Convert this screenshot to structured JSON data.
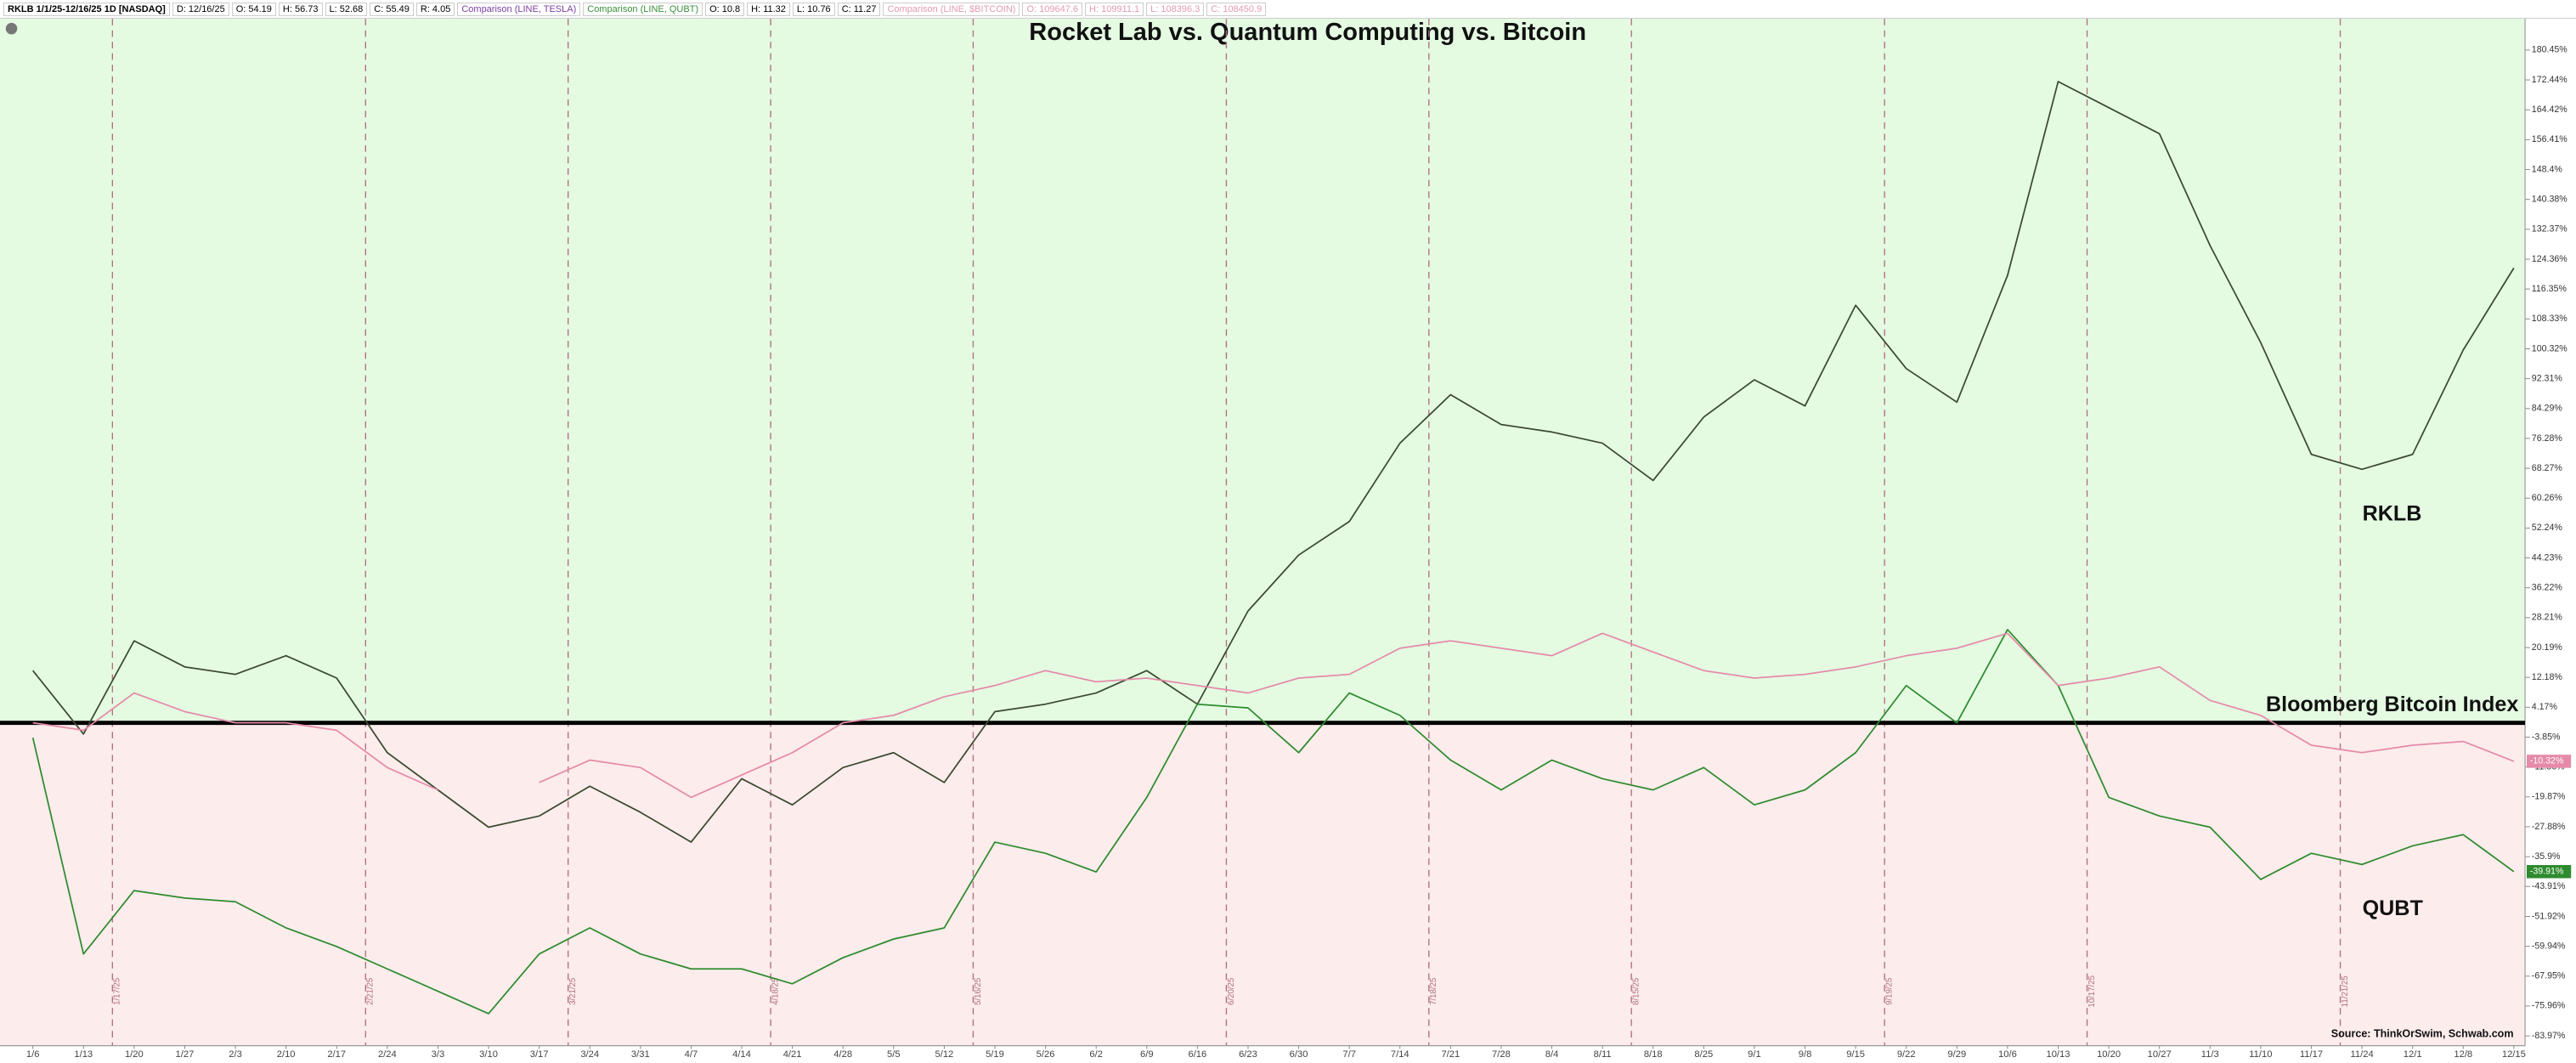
{
  "chart_data": {
    "type": "line",
    "title": "Rocket Lab vs. Quantum Computing vs. Bitcoin",
    "header": [
      {
        "text": "RKLB 1/1/25-12/16/25 1D [NASDAQ]",
        "color": "#000000"
      },
      {
        "text": "D: 12/16/25",
        "color": "#000000"
      },
      {
        "text": "O: 54.19",
        "color": "#000000"
      },
      {
        "text": "H: 56.73",
        "color": "#000000"
      },
      {
        "text": "L: 52.68",
        "color": "#000000"
      },
      {
        "text": "C: 55.49",
        "color": "#000000"
      },
      {
        "text": "R: 4.05",
        "color": "#000000"
      },
      {
        "text": "Comparison (LINE, TESLA)",
        "color": "#7b3f9e"
      },
      {
        "text": "Comparison (LINE, QUBT)",
        "color": "#3a8f3a"
      },
      {
        "text": "O: 10.8",
        "color": "#000000"
      },
      {
        "text": "H: 11.32",
        "color": "#000000"
      },
      {
        "text": "L: 10.76",
        "color": "#000000"
      },
      {
        "text": "C: 11.27",
        "color": "#000000"
      },
      {
        "text": "Comparison (LINE, $BITCOIN)",
        "color": "#e39ab3"
      },
      {
        "text": "O: 109647.6",
        "color": "#e39ab3"
      },
      {
        "text": "H: 109911.1",
        "color": "#e39ab3"
      },
      {
        "text": "L: 108396.3",
        "color": "#e39ab3"
      },
      {
        "text": "C: 108450.9",
        "color": "#e39ab3"
      }
    ],
    "categories": [
      "1/6",
      "1/13",
      "1/20",
      "1/27",
      "2/3",
      "2/10",
      "2/17",
      "2/24",
      "3/3",
      "3/10",
      "3/17",
      "3/24",
      "3/31",
      "4/7",
      "4/14",
      "4/21",
      "4/28",
      "5/5",
      "5/12",
      "5/19",
      "5/26",
      "6/2",
      "6/9",
      "6/16",
      "6/23",
      "6/30",
      "7/7",
      "7/14",
      "7/21",
      "7/28",
      "8/4",
      "8/11",
      "8/18",
      "8/25",
      "9/1",
      "9/8",
      "9/15",
      "9/22",
      "9/29",
      "10/6",
      "10/13",
      "10/20",
      "10/27",
      "11/3",
      "11/10",
      "11/17",
      "11/24",
      "12/1",
      "12/8",
      "12/15"
    ],
    "series": [
      {
        "name": "RKLB",
        "color": "#3b4a30",
        "values": [
          14,
          -3,
          22,
          15,
          13,
          18,
          12,
          -8,
          -18,
          -28,
          -25,
          -17,
          -24,
          -32,
          -15,
          -22,
          -12,
          -8,
          -16,
          3,
          5,
          8,
          14,
          5,
          30,
          45,
          54,
          75,
          88,
          80,
          78,
          75,
          65,
          82,
          92,
          85,
          112,
          95,
          86,
          120,
          172,
          165,
          158,
          128,
          102,
          72,
          68,
          72,
          100,
          122
        ]
      },
      {
        "name": "QUBT",
        "color": "#2e8b2e",
        "values": [
          -4,
          -62,
          -45,
          -47,
          -48,
          -55,
          -60,
          -66,
          -72,
          -78,
          -62,
          -55,
          -62,
          -66,
          -66,
          -70,
          -63,
          -58,
          -55,
          -32,
          -35,
          -40,
          -20,
          5,
          4,
          -8,
          8,
          2,
          -10,
          -18,
          -10,
          -15,
          -18,
          -12,
          -22,
          -18,
          -8,
          10,
          0,
          25,
          10,
          -20,
          -25,
          -28,
          -42,
          -35,
          -38,
          -33,
          -30,
          -39.91
        ],
        "value_labels": [
          null,
          null,
          null,
          null,
          null,
          null,
          null,
          null,
          null,
          null,
          null,
          null,
          null,
          null,
          null,
          null,
          null,
          null,
          null,
          null,
          null,
          null,
          null,
          null,
          null,
          null,
          null,
          null,
          null,
          null,
          null,
          null,
          null,
          null,
          null,
          null,
          null,
          null,
          null,
          null,
          null,
          null,
          null,
          null,
          null,
          null,
          null,
          null,
          null,
          "-39.91%"
        ]
      },
      {
        "name": "Bloomberg Bitcoin Index",
        "color": "#e58aa8",
        "values": [
          0,
          -2,
          8,
          3,
          0,
          0,
          -2,
          -12,
          -18,
          null,
          -16,
          -10,
          -12,
          -20,
          -14,
          -8,
          0,
          2,
          7,
          10,
          14,
          11,
          12,
          10,
          8,
          12,
          13,
          20,
          22,
          20,
          18,
          24,
          19,
          14,
          12,
          13,
          15,
          18,
          20,
          24,
          10,
          12,
          15,
          6,
          2,
          -6,
          -8,
          -6,
          -5,
          -10.32
        ],
        "value_labels": [
          null,
          null,
          null,
          null,
          null,
          null,
          null,
          null,
          null,
          null,
          null,
          null,
          null,
          null,
          null,
          null,
          null,
          null,
          null,
          null,
          null,
          null,
          null,
          null,
          null,
          null,
          null,
          null,
          null,
          null,
          null,
          null,
          null,
          null,
          null,
          null,
          null,
          null,
          null,
          null,
          null,
          null,
          null,
          null,
          null,
          null,
          null,
          null,
          null,
          "-10.32%"
        ]
      }
    ],
    "ylim": [
      -86.6,
      188.4
    ],
    "yticks": [
      {
        "value": 180.45,
        "label": "180.45%"
      },
      {
        "value": 172.44,
        "label": "172.44%"
      },
      {
        "value": 164.42,
        "label": "164.42%"
      },
      {
        "value": 156.41,
        "label": "156.41%"
      },
      {
        "value": 148.4,
        "label": "148.4%"
      },
      {
        "value": 140.38,
        "label": "140.38%"
      },
      {
        "value": 132.37,
        "label": "132.37%"
      },
      {
        "value": 124.36,
        "label": "124.36%"
      },
      {
        "value": 116.35,
        "label": "116.35%"
      },
      {
        "value": 108.33,
        "label": "108.33%"
      },
      {
        "value": 100.32,
        "label": "100.32%"
      },
      {
        "value": 92.31,
        "label": "92.31%"
      },
      {
        "value": 84.29,
        "label": "84.29%"
      },
      {
        "value": 76.28,
        "label": "76.28%"
      },
      {
        "value": 68.27,
        "label": "68.27%"
      },
      {
        "value": 60.26,
        "label": "60.26%"
      },
      {
        "value": 52.24,
        "label": "52.24%"
      },
      {
        "value": 44.23,
        "label": "44.23%"
      },
      {
        "value": 36.22,
        "label": "36.22%"
      },
      {
        "value": 28.21,
        "label": "28.21%"
      },
      {
        "value": 20.19,
        "label": "20.19%"
      },
      {
        "value": 12.18,
        "label": "12.18%"
      },
      {
        "value": 4.17,
        "label": "4.17%"
      },
      {
        "value": -3.85,
        "label": "-3.85%"
      },
      {
        "value": -11.86,
        "label": "-11.86%"
      },
      {
        "value": -19.87,
        "label": "-19.87%"
      },
      {
        "value": -27.88,
        "label": "-27.88%"
      },
      {
        "value": -35.9,
        "label": "-35.9%"
      },
      {
        "value": -43.91,
        "label": "-43.91%"
      },
      {
        "value": -51.92,
        "label": "-51.92%"
      },
      {
        "value": -59.94,
        "label": "-59.94%"
      },
      {
        "value": -67.95,
        "label": "-67.95%"
      },
      {
        "value": -75.96,
        "label": "-75.96%"
      },
      {
        "value": -83.97,
        "label": "-83.97%"
      }
    ],
    "grid": false,
    "zero_line": true,
    "above_color": "#e4fbe2",
    "below_color": "#fcecec",
    "vlines": [
      "1/17/25",
      "2/21/25",
      "3/21/25",
      "4/18/25",
      "5/16/25",
      "6/20/25",
      "7/18/25",
      "8/15/25",
      "9/19/25",
      "10/17/25",
      "11/21/25"
    ],
    "vline_color": "#b07080",
    "source": "Source: ThinkOrSwim, Schwab.com"
  }
}
